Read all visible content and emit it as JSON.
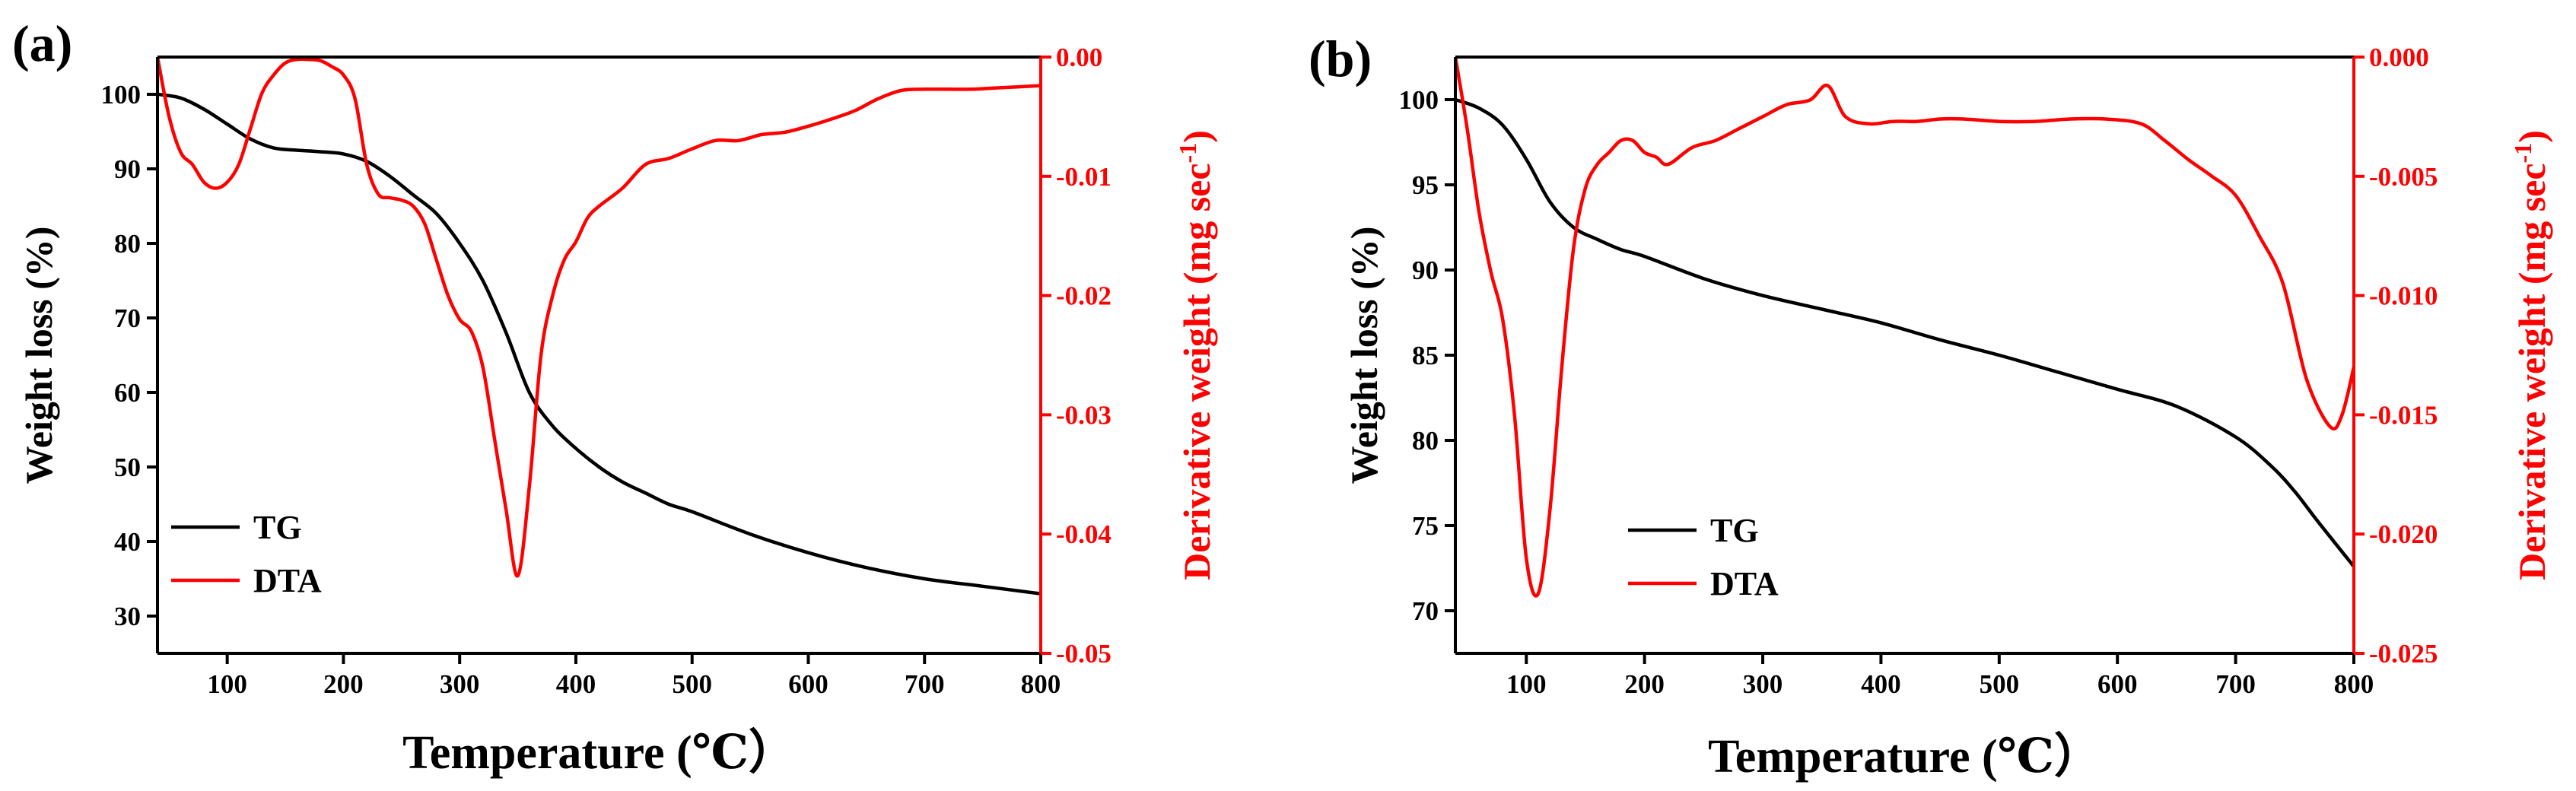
{
  "chart_data": [
    {
      "type": "line",
      "panel_label": "(a)",
      "xlabel": "Temperature (℃）",
      "ylabel": "Weight loss (%)",
      "y2label": "Derivative weight (mg sec",
      "y2label_sup": "-1",
      "y2label_close": ")",
      "xlim": [
        40,
        800
      ],
      "ylim": [
        25,
        105
      ],
      "y2lim": [
        -0.05,
        0.0
      ],
      "x_ticks": [
        100,
        200,
        300,
        400,
        500,
        600,
        700,
        800
      ],
      "y_ticks": [
        30,
        40,
        50,
        60,
        70,
        80,
        90,
        100
      ],
      "y2_ticks": [
        "0.00",
        "-0.01",
        "-0.02",
        "-0.03",
        "-0.04",
        "-0.05"
      ],
      "y2_tick_values": [
        0.0,
        -0.01,
        -0.02,
        -0.03,
        -0.04,
        -0.05
      ],
      "legend": [
        "TG",
        "DTA"
      ],
      "legend_position": "bottom-left",
      "series": [
        {
          "name": "TG",
          "axis": "left",
          "color": "#000000",
          "x": [
            40,
            60,
            80,
            100,
            120,
            140,
            160,
            180,
            200,
            220,
            240,
            260,
            280,
            300,
            320,
            340,
            360,
            380,
            400,
            420,
            440,
            460,
            480,
            500,
            550,
            600,
            650,
            700,
            750,
            800
          ],
          "y": [
            100,
            99.5,
            98,
            96,
            94,
            92.8,
            92.5,
            92.3,
            92,
            91,
            89,
            86.5,
            84,
            80,
            75,
            68,
            60,
            55.5,
            52.5,
            50,
            48,
            46.5,
            45,
            44,
            41,
            38.5,
            36.5,
            35,
            34,
            33
          ]
        },
        {
          "name": "DTA",
          "axis": "right",
          "color": "#ff0000",
          "x": [
            40,
            50,
            60,
            70,
            80,
            90,
            100,
            110,
            120,
            130,
            140,
            150,
            160,
            170,
            180,
            190,
            200,
            210,
            220,
            230,
            240,
            250,
            260,
            270,
            280,
            290,
            300,
            310,
            320,
            330,
            340,
            350,
            360,
            370,
            380,
            390,
            400,
            410,
            420,
            440,
            460,
            480,
            500,
            520,
            540,
            560,
            580,
            600,
            620,
            640,
            660,
            680,
            700,
            720,
            740,
            760,
            780,
            800
          ],
          "y": [
            0.0,
            -0.005,
            -0.008,
            -0.009,
            -0.0105,
            -0.011,
            -0.0105,
            -0.009,
            -0.006,
            -0.003,
            -0.0015,
            -0.0005,
            -0.0002,
            -0.0002,
            -0.0003,
            -0.0008,
            -0.0015,
            -0.0035,
            -0.009,
            -0.0115,
            -0.0118,
            -0.012,
            -0.0125,
            -0.014,
            -0.017,
            -0.02,
            -0.022,
            -0.023,
            -0.026,
            -0.032,
            -0.038,
            -0.0435,
            -0.036,
            -0.025,
            -0.02,
            -0.017,
            -0.0155,
            -0.0135,
            -0.0125,
            -0.011,
            -0.009,
            -0.0085,
            -0.0077,
            -0.007,
            -0.007,
            -0.0065,
            -0.0063,
            -0.0058,
            -0.0052,
            -0.0045,
            -0.0035,
            -0.0028,
            -0.0027,
            -0.0027,
            -0.0027,
            -0.0026,
            -0.0025,
            -0.0024
          ]
        }
      ]
    },
    {
      "type": "line",
      "panel_label": "(b)",
      "xlabel": "Temperature (℃）",
      "ylabel": "Weight loss (%)",
      "y2label": "Derivative weight (mg sec",
      "y2label_sup": "-1",
      "y2label_close": ")",
      "xlim": [
        40,
        800
      ],
      "ylim": [
        67.5,
        102.5
      ],
      "y2lim": [
        -0.025,
        0.0
      ],
      "x_ticks": [
        100,
        200,
        300,
        400,
        500,
        600,
        700,
        800
      ],
      "y_ticks": [
        70,
        75,
        80,
        85,
        90,
        95,
        100
      ],
      "y2_ticks": [
        "0.000",
        "-0.005",
        "-0.010",
        "-0.015",
        "-0.020",
        "-0.025"
      ],
      "y2_tick_values": [
        0.0,
        -0.005,
        -0.01,
        -0.015,
        -0.02,
        -0.025
      ],
      "legend": [
        "TG",
        "DTA"
      ],
      "legend_position": "bottom-left",
      "series": [
        {
          "name": "TG",
          "axis": "left",
          "color": "#000000",
          "x": [
            40,
            60,
            80,
            100,
            120,
            140,
            160,
            180,
            200,
            250,
            300,
            350,
            400,
            450,
            500,
            550,
            600,
            650,
            700,
            730,
            750,
            770,
            800
          ],
          "y": [
            100,
            99.5,
            98.5,
            96.5,
            94,
            92.5,
            91.8,
            91.2,
            90.8,
            89.5,
            88.5,
            87.7,
            86.9,
            85.9,
            85,
            84,
            83,
            82,
            80.2,
            78.5,
            77,
            75.2,
            72.6
          ]
        },
        {
          "name": "DTA",
          "axis": "right",
          "color": "#ff0000",
          "x": [
            40,
            50,
            60,
            70,
            80,
            90,
            100,
            110,
            120,
            130,
            140,
            150,
            160,
            170,
            180,
            190,
            200,
            210,
            220,
            240,
            260,
            280,
            300,
            320,
            340,
            355,
            370,
            390,
            410,
            430,
            450,
            470,
            500,
            530,
            560,
            590,
            620,
            640,
            660,
            680,
            700,
            720,
            740,
            760,
            780,
            790,
            800
          ],
          "y": [
            0.0,
            -0.003,
            -0.0065,
            -0.009,
            -0.011,
            -0.015,
            -0.021,
            -0.0225,
            -0.019,
            -0.013,
            -0.008,
            -0.0055,
            -0.0045,
            -0.004,
            -0.0035,
            -0.0035,
            -0.004,
            -0.0042,
            -0.0045,
            -0.0038,
            -0.0035,
            -0.003,
            -0.0025,
            -0.002,
            -0.0018,
            -0.0012,
            -0.0025,
            -0.0028,
            -0.0027,
            -0.0027,
            -0.0026,
            -0.0026,
            -0.0027,
            -0.0027,
            -0.0026,
            -0.0026,
            -0.0028,
            -0.0035,
            -0.0043,
            -0.005,
            -0.0058,
            -0.0075,
            -0.0095,
            -0.0135,
            -0.0155,
            -0.015,
            -0.013
          ]
        }
      ]
    }
  ]
}
